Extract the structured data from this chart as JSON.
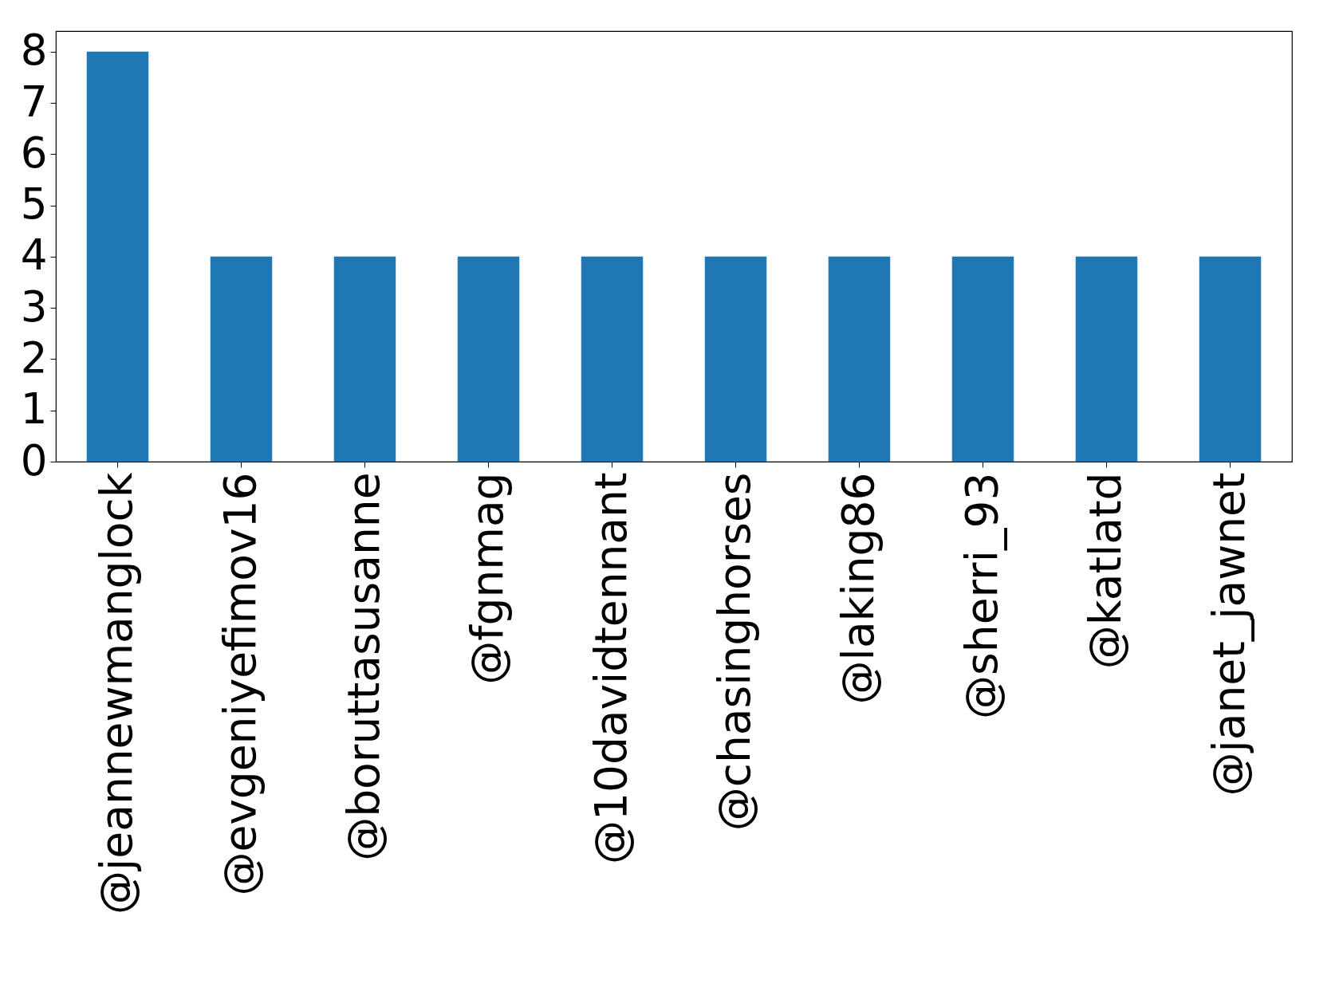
{
  "chart_data": {
    "type": "bar",
    "categories": [
      "@jeannewmanglock",
      "@evgeniyefimov16",
      "@boruttasusanne",
      "@fgnmag",
      "@10davidtennant",
      "@chasinghorses",
      "@laking86",
      "@sherri_93",
      "@katlatd",
      "@janet_jawnet"
    ],
    "values": [
      8,
      4,
      4,
      4,
      4,
      4,
      4,
      4,
      4,
      4
    ],
    "color": "#1f77b4",
    "ylim": [
      0,
      8.4
    ],
    "yticks": [
      0,
      1,
      2,
      3,
      4,
      5,
      6,
      7,
      8
    ],
    "grid": false
  }
}
